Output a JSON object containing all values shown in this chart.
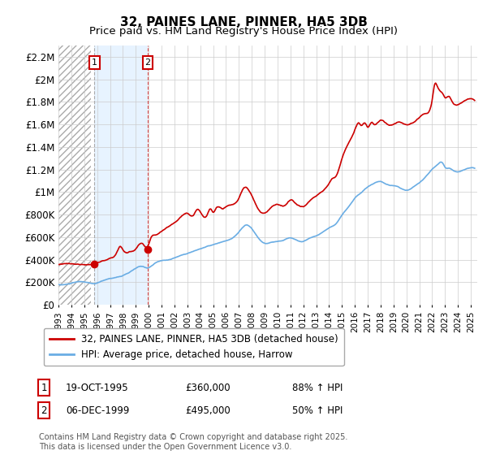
{
  "title": "32, PAINES LANE, PINNER, HA5 3DB",
  "subtitle": "Price paid vs. HM Land Registry's House Price Index (HPI)",
  "hpi_color": "#6aade4",
  "price_color": "#cc0000",
  "sale1_date": 1995.8,
  "sale1_price": 360000,
  "sale2_date": 1999.92,
  "sale2_price": 495000,
  "ylabel_ticks": [
    "£0",
    "£200K",
    "£400K",
    "£600K",
    "£800K",
    "£1M",
    "£1.2M",
    "£1.4M",
    "£1.6M",
    "£1.8M",
    "£2M",
    "£2.2M"
  ],
  "ylabel_values": [
    0,
    200000,
    400000,
    600000,
    800000,
    1000000,
    1200000,
    1400000,
    1600000,
    1800000,
    2000000,
    2200000
  ],
  "xmin": 1993,
  "xmax": 2025.5,
  "ymin": 0,
  "ymax": 2300000,
  "legend_label1": "32, PAINES LANE, PINNER, HA5 3DB (detached house)",
  "legend_label2": "HPI: Average price, detached house, Harrow",
  "annotation1_date": "19-OCT-1995",
  "annotation1_price": "£360,000",
  "annotation1_hpi": "88% ↑ HPI",
  "annotation2_date": "06-DEC-1999",
  "annotation2_price": "£495,000",
  "annotation2_hpi": "50% ↑ HPI",
  "footer": "Contains HM Land Registry data © Crown copyright and database right 2025.\nThis data is licensed under the Open Government Licence v3.0.",
  "grid_color": "#cccccc",
  "hatch_color": "#bbbbbb"
}
